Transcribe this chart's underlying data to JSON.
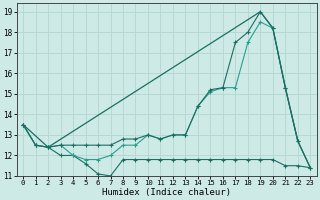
{
  "xlabel": "Humidex (Indice chaleur)",
  "background_color": "#ceeae7",
  "grid_color": "#b8d8d4",
  "line_color_dark": "#1a6e62",
  "line_color_mid": "#2a9d8f",
  "xlim": [
    -0.5,
    23.5
  ],
  "ylim": [
    11,
    19.4
  ],
  "yticks": [
    11,
    12,
    13,
    14,
    15,
    16,
    17,
    18,
    19
  ],
  "xticks": [
    0,
    1,
    2,
    3,
    4,
    5,
    6,
    7,
    8,
    9,
    10,
    11,
    12,
    13,
    14,
    15,
    16,
    17,
    18,
    19,
    20,
    21,
    22,
    23
  ],
  "s1_x": [
    0,
    1,
    2,
    3,
    4,
    5,
    6,
    7,
    8,
    9,
    10,
    11,
    12,
    13,
    14,
    15,
    16,
    17,
    18,
    19,
    20,
    21,
    22,
    23
  ],
  "s1_y": [
    13.5,
    12.5,
    12.4,
    12.0,
    12.0,
    11.6,
    11.1,
    11.0,
    11.8,
    11.8,
    11.8,
    11.8,
    11.8,
    11.8,
    11.8,
    11.8,
    11.8,
    11.8,
    11.8,
    11.8,
    11.8,
    11.5,
    11.5,
    11.4
  ],
  "s2_x": [
    0,
    1,
    2,
    3,
    4,
    5,
    6,
    7,
    8,
    9,
    10,
    11,
    12,
    13,
    14,
    15,
    16,
    17,
    18,
    19,
    20,
    21,
    22
  ],
  "s2_y": [
    13.5,
    12.5,
    12.4,
    12.5,
    12.0,
    11.8,
    11.8,
    12.0,
    12.5,
    12.5,
    13.0,
    12.8,
    13.0,
    13.0,
    14.4,
    15.1,
    15.3,
    15.3,
    17.5,
    18.5,
    18.2,
    15.3,
    12.7
  ],
  "s3_x": [
    0,
    1,
    2,
    3,
    4,
    5,
    6,
    7,
    8,
    9,
    10,
    11,
    12,
    13,
    14,
    15,
    16,
    17,
    18,
    19,
    20,
    21,
    22,
    23
  ],
  "s3_y": [
    13.5,
    12.5,
    12.4,
    12.5,
    12.5,
    12.5,
    12.5,
    12.5,
    12.8,
    12.8,
    13.0,
    12.8,
    13.0,
    13.0,
    14.4,
    15.2,
    15.3,
    17.5,
    18.0,
    19.0,
    18.2,
    15.3,
    12.7,
    11.4
  ],
  "s4_x": [
    0,
    2,
    19,
    20,
    21,
    22,
    23
  ],
  "s4_y": [
    13.5,
    12.4,
    19.0,
    18.2,
    15.3,
    12.7,
    11.4
  ]
}
